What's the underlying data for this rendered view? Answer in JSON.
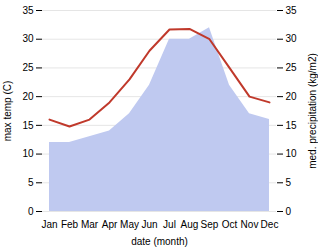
{
  "chart_data": {
    "type": "line",
    "categories": [
      "Jan",
      "Feb",
      "Mar",
      "Apr",
      "May",
      "Jun",
      "Jul",
      "Aug",
      "Sep",
      "Oct",
      "Nov",
      "Dec"
    ],
    "series": [
      {
        "type": "area",
        "axis": "y2",
        "color": "#bfc9f0",
        "values": [
          12,
          12,
          13,
          14,
          17,
          22,
          30,
          30,
          32,
          22,
          17,
          16
        ]
      },
      {
        "type": "line",
        "color": "#c0392b",
        "values": [
          16,
          14.8,
          16,
          19,
          23,
          28,
          31.7,
          31.8,
          30,
          25,
          20,
          19
        ]
      }
    ],
    "xlabel": "date (month)",
    "ylabel": "max temp (C)",
    "y2label": "med. precipitation (kg/m2)",
    "ylim": [
      0,
      35
    ],
    "yticks": [
      0,
      5,
      10,
      15,
      20,
      25,
      30,
      35
    ],
    "y2lim": [
      0,
      35
    ],
    "y2ticks": [
      0,
      5,
      10,
      15,
      20,
      25,
      30,
      35
    ],
    "grid": true
  }
}
